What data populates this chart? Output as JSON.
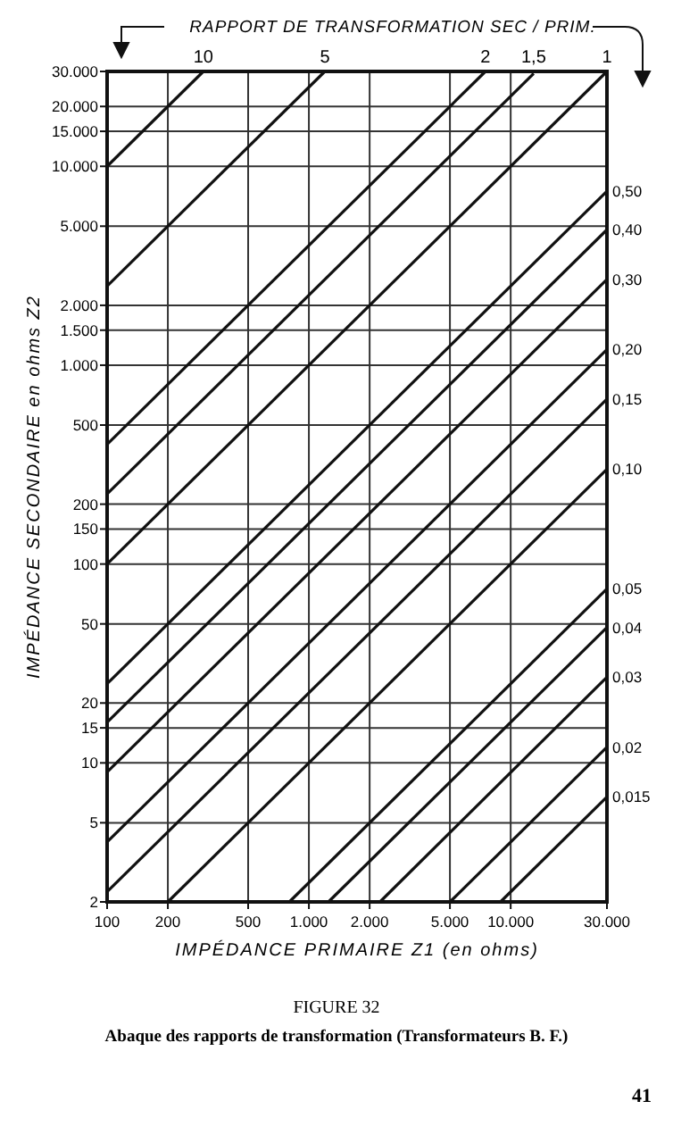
{
  "chart_data": {
    "type": "line",
    "xlabel": "IMPÉDANCE PRIMAIRE Z1 (en ohms)",
    "ylabel": "IMPÉDANCE SECONDAIRE en ohms Z2",
    "annotations": [
      "RAPPORT DE TRANSFORMATION SEC / PRIM.",
      "FIGURE 32",
      "Abaque des rapports de transformation (Transformateurs B. F.)",
      "41"
    ],
    "log": "xy",
    "grid": true,
    "marker": "none",
    "line_style": "solid",
    "xlim": [
      100,
      30000
    ],
    "ylim": [
      2,
      30000
    ],
    "xticks": [
      100,
      200,
      500,
      {
        "value": 1000,
        "label": "1.000"
      },
      {
        "value": 2000,
        "label": "2.000"
      },
      {
        "value": 5000,
        "label": "5.000"
      },
      {
        "value": 10000,
        "label": "10.000"
      },
      {
        "value": 30000,
        "label": "30.000"
      }
    ],
    "yticks": [
      2,
      5,
      10,
      15,
      20,
      50,
      100,
      150,
      200,
      500,
      {
        "value": 1000,
        "label": "1.000"
      },
      {
        "value": 1500,
        "label": "1.500"
      },
      {
        "value": 2000,
        "label": "2.000"
      },
      {
        "value": 5000,
        "label": "5.000"
      },
      {
        "value": 10000,
        "label": "10.000"
      },
      {
        "value": 15000,
        "label": "15.000"
      },
      {
        "value": 20000,
        "label": "20.000"
      },
      {
        "value": 30000,
        "label": "30.000"
      }
    ],
    "series": [
      {
        "name": "10",
        "color": "#111111",
        "x": [
          100,
          300
        ],
        "values": [
          10000,
          30000
        ]
      },
      {
        "name": "5",
        "color": "#111111",
        "x": [
          100,
          1200
        ],
        "values": [
          2500,
          30000
        ]
      },
      {
        "name": "2",
        "color": "#111111",
        "x": [
          100,
          7500
        ],
        "values": [
          400,
          30000
        ]
      },
      {
        "name": "1,5",
        "color": "#111111",
        "x": [
          100,
          13000
        ],
        "values": [
          225,
          29250
        ]
      },
      {
        "name": "1",
        "color": "#111111",
        "x": [
          100,
          30000
        ],
        "values": [
          100,
          30000
        ]
      },
      {
        "name": "0,50",
        "color": "#111111",
        "x": [
          100,
          30000
        ],
        "values": [
          25,
          7500
        ]
      },
      {
        "name": "0,40",
        "color": "#111111",
        "x": [
          100,
          30000
        ],
        "values": [
          16,
          4800
        ]
      },
      {
        "name": "0,30",
        "color": "#111111",
        "x": [
          100,
          30000
        ],
        "values": [
          9,
          2700
        ]
      },
      {
        "name": "0,20",
        "color": "#111111",
        "x": [
          100,
          30000
        ],
        "values": [
          4,
          1200
        ]
      },
      {
        "name": "0,15",
        "color": "#111111",
        "x": [
          100,
          30000
        ],
        "values": [
          2.25,
          675
        ]
      },
      {
        "name": "0,10",
        "color": "#111111",
        "x": [
          200,
          30000
        ],
        "values": [
          2,
          300
        ]
      },
      {
        "name": "0,05",
        "color": "#111111",
        "x": [
          800,
          30000
        ],
        "values": [
          2,
          75
        ]
      },
      {
        "name": "0,04",
        "color": "#111111",
        "x": [
          1250,
          30000
        ],
        "values": [
          2,
          48
        ]
      },
      {
        "name": "0,03",
        "color": "#111111",
        "x": [
          2250,
          30000
        ],
        "values": [
          2,
          27
        ]
      },
      {
        "name": "0,02",
        "color": "#111111",
        "x": [
          5000,
          30000
        ],
        "values": [
          2,
          12
        ]
      },
      {
        "name": "0,015",
        "color": "#111111",
        "x": [
          8900,
          30000
        ],
        "values": [
          2,
          6.75
        ]
      }
    ]
  }
}
